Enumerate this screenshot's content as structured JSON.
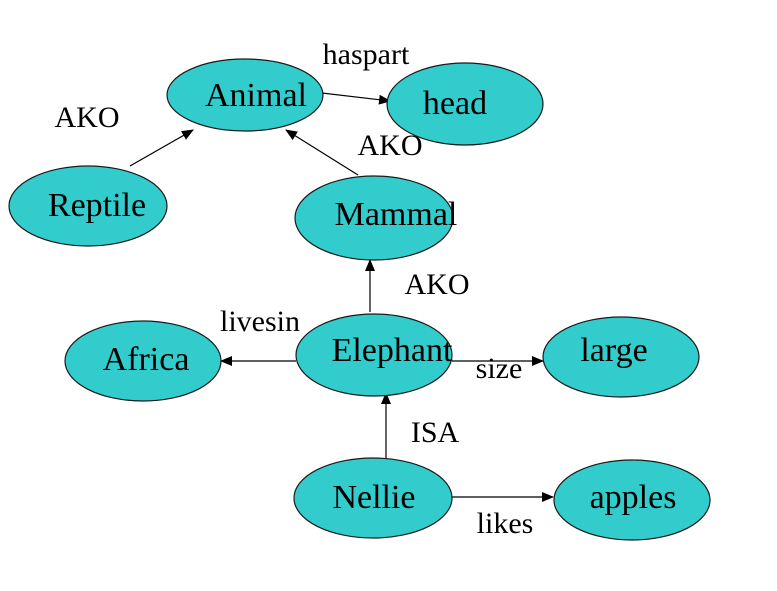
{
  "diagram": {
    "node_fill": "#33CCCC",
    "node_stroke": "#1a1a1a",
    "edge_color": "#000000",
    "nodes": [
      {
        "id": "animal",
        "label": "Animal"
      },
      {
        "id": "head",
        "label": "head"
      },
      {
        "id": "reptile",
        "label": "Reptile"
      },
      {
        "id": "mammal",
        "label": "Mammal"
      },
      {
        "id": "africa",
        "label": "Africa"
      },
      {
        "id": "elephant",
        "label": "Elephant"
      },
      {
        "id": "large",
        "label": "large"
      },
      {
        "id": "nellie",
        "label": "Nellie"
      },
      {
        "id": "apples",
        "label": "apples"
      }
    ],
    "edges": [
      {
        "id": "animal-head",
        "from": "Animal",
        "to": "head",
        "label": "haspart"
      },
      {
        "id": "reptile-animal",
        "from": "Reptile",
        "to": "Animal",
        "label": "AKO"
      },
      {
        "id": "mammal-animal",
        "from": "Mammal",
        "to": "Animal",
        "label": "AKO"
      },
      {
        "id": "elephant-mammal",
        "from": "Elephant",
        "to": "Mammal",
        "label": "AKO"
      },
      {
        "id": "elephant-africa",
        "from": "Elephant",
        "to": "Africa",
        "label": "livesin"
      },
      {
        "id": "elephant-large",
        "from": "Elephant",
        "to": "large",
        "label": "size"
      },
      {
        "id": "nellie-elephant",
        "from": "Nellie",
        "to": "Elephant",
        "label": "ISA"
      },
      {
        "id": "nellie-apples",
        "from": "Nellie",
        "to": "apples",
        "label": "likes"
      }
    ]
  }
}
